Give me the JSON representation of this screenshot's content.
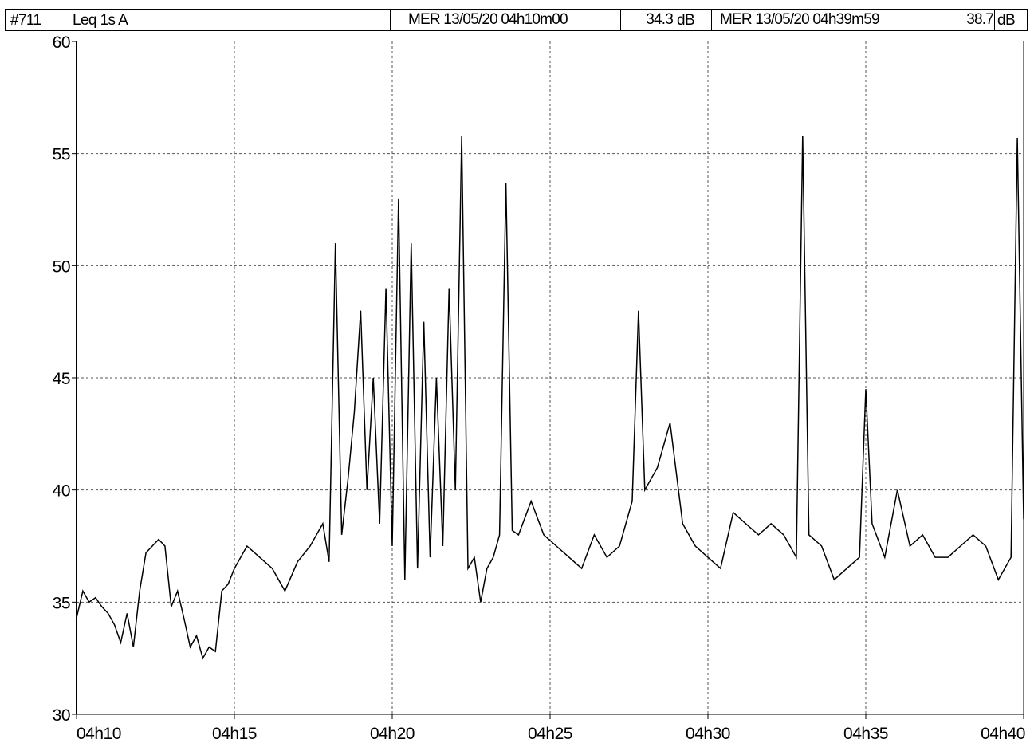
{
  "header": {
    "id": "#711",
    "measure": "Leq 1s  A",
    "cursor1": {
      "datetime": "MER 13/05/20 04h10m00",
      "value": "34.3",
      "unit": "dB"
    },
    "cursor2": {
      "datetime": "MER 13/05/20 04h39m59",
      "value": "38.7",
      "unit": "dB"
    }
  },
  "chart_data": {
    "type": "line",
    "title": "",
    "xlabel": "",
    "ylabel": "",
    "ylim": [
      30,
      60
    ],
    "yticks": [
      30,
      35,
      40,
      45,
      50,
      55,
      60
    ],
    "xlim_minutes": [
      10,
      40
    ],
    "xticks": [
      {
        "minute": 10,
        "label": "04h10"
      },
      {
        "minute": 15,
        "label": "04h15"
      },
      {
        "minute": 20,
        "label": "04h20"
      },
      {
        "minute": 25,
        "label": "04h25"
      },
      {
        "minute": 30,
        "label": "04h30"
      },
      {
        "minute": 35,
        "label": "04h35"
      },
      {
        "minute": 40,
        "label": "04h40"
      }
    ],
    "grid": true,
    "series": [
      {
        "color": "#000000",
        "x_minutes": [
          10.0,
          10.2,
          10.4,
          10.6,
          10.8,
          11.0,
          11.2,
          11.4,
          11.6,
          11.8,
          12.0,
          12.2,
          12.4,
          12.6,
          12.8,
          13.0,
          13.2,
          13.4,
          13.6,
          13.8,
          14.0,
          14.2,
          14.4,
          14.6,
          14.8,
          15.0,
          15.4,
          15.8,
          16.2,
          16.6,
          17.0,
          17.4,
          17.8,
          18.0,
          18.2,
          18.4,
          18.6,
          18.8,
          19.0,
          19.2,
          19.4,
          19.6,
          19.8,
          20.0,
          20.2,
          20.4,
          20.6,
          20.8,
          21.0,
          21.2,
          21.4,
          21.6,
          21.8,
          22.0,
          22.2,
          22.4,
          22.6,
          22.8,
          23.0,
          23.2,
          23.4,
          23.6,
          23.8,
          24.0,
          24.4,
          24.8,
          25.2,
          25.6,
          26.0,
          26.4,
          26.8,
          27.2,
          27.6,
          27.8,
          28.0,
          28.4,
          28.8,
          29.2,
          29.6,
          30.0,
          30.4,
          30.8,
          31.2,
          31.6,
          32.0,
          32.4,
          32.8,
          33.0,
          33.2,
          33.6,
          34.0,
          34.4,
          34.8,
          35.0,
          35.2,
          35.6,
          36.0,
          36.4,
          36.8,
          37.2,
          37.6,
          38.0,
          38.4,
          38.8,
          39.2,
          39.6,
          39.8,
          40.0
        ],
        "values": [
          34.3,
          35.5,
          35.0,
          35.2,
          34.8,
          34.5,
          34.0,
          33.2,
          34.5,
          33.0,
          35.5,
          37.2,
          37.5,
          37.8,
          37.5,
          34.8,
          35.5,
          34.3,
          33.0,
          33.5,
          32.5,
          33.0,
          32.8,
          35.5,
          35.8,
          36.5,
          37.5,
          37.0,
          36.5,
          35.5,
          36.8,
          37.5,
          38.5,
          36.8,
          51.0,
          38.0,
          40.5,
          43.5,
          48.0,
          40.0,
          45.0,
          38.5,
          49.0,
          37.5,
          53.0,
          36.0,
          51.0,
          36.5,
          47.5,
          37.0,
          45.0,
          37.5,
          49.0,
          40.0,
          55.8,
          36.5,
          37.0,
          35.0,
          36.5,
          37.0,
          38.0,
          53.7,
          38.2,
          38.0,
          39.5,
          38.0,
          37.5,
          37.0,
          36.5,
          38.0,
          37.0,
          37.5,
          39.5,
          48.0,
          40.0,
          41.0,
          43.0,
          38.5,
          37.5,
          37.0,
          36.5,
          39.0,
          38.5,
          38.0,
          38.5,
          38.0,
          37.0,
          55.8,
          38.0,
          37.5,
          36.0,
          36.5,
          37.0,
          44.5,
          38.5,
          37.0,
          40.0,
          37.5,
          38.0,
          37.0,
          37.0,
          37.5,
          38.0,
          37.5,
          36.0,
          37.0,
          55.7,
          38.7
        ]
      }
    ]
  }
}
